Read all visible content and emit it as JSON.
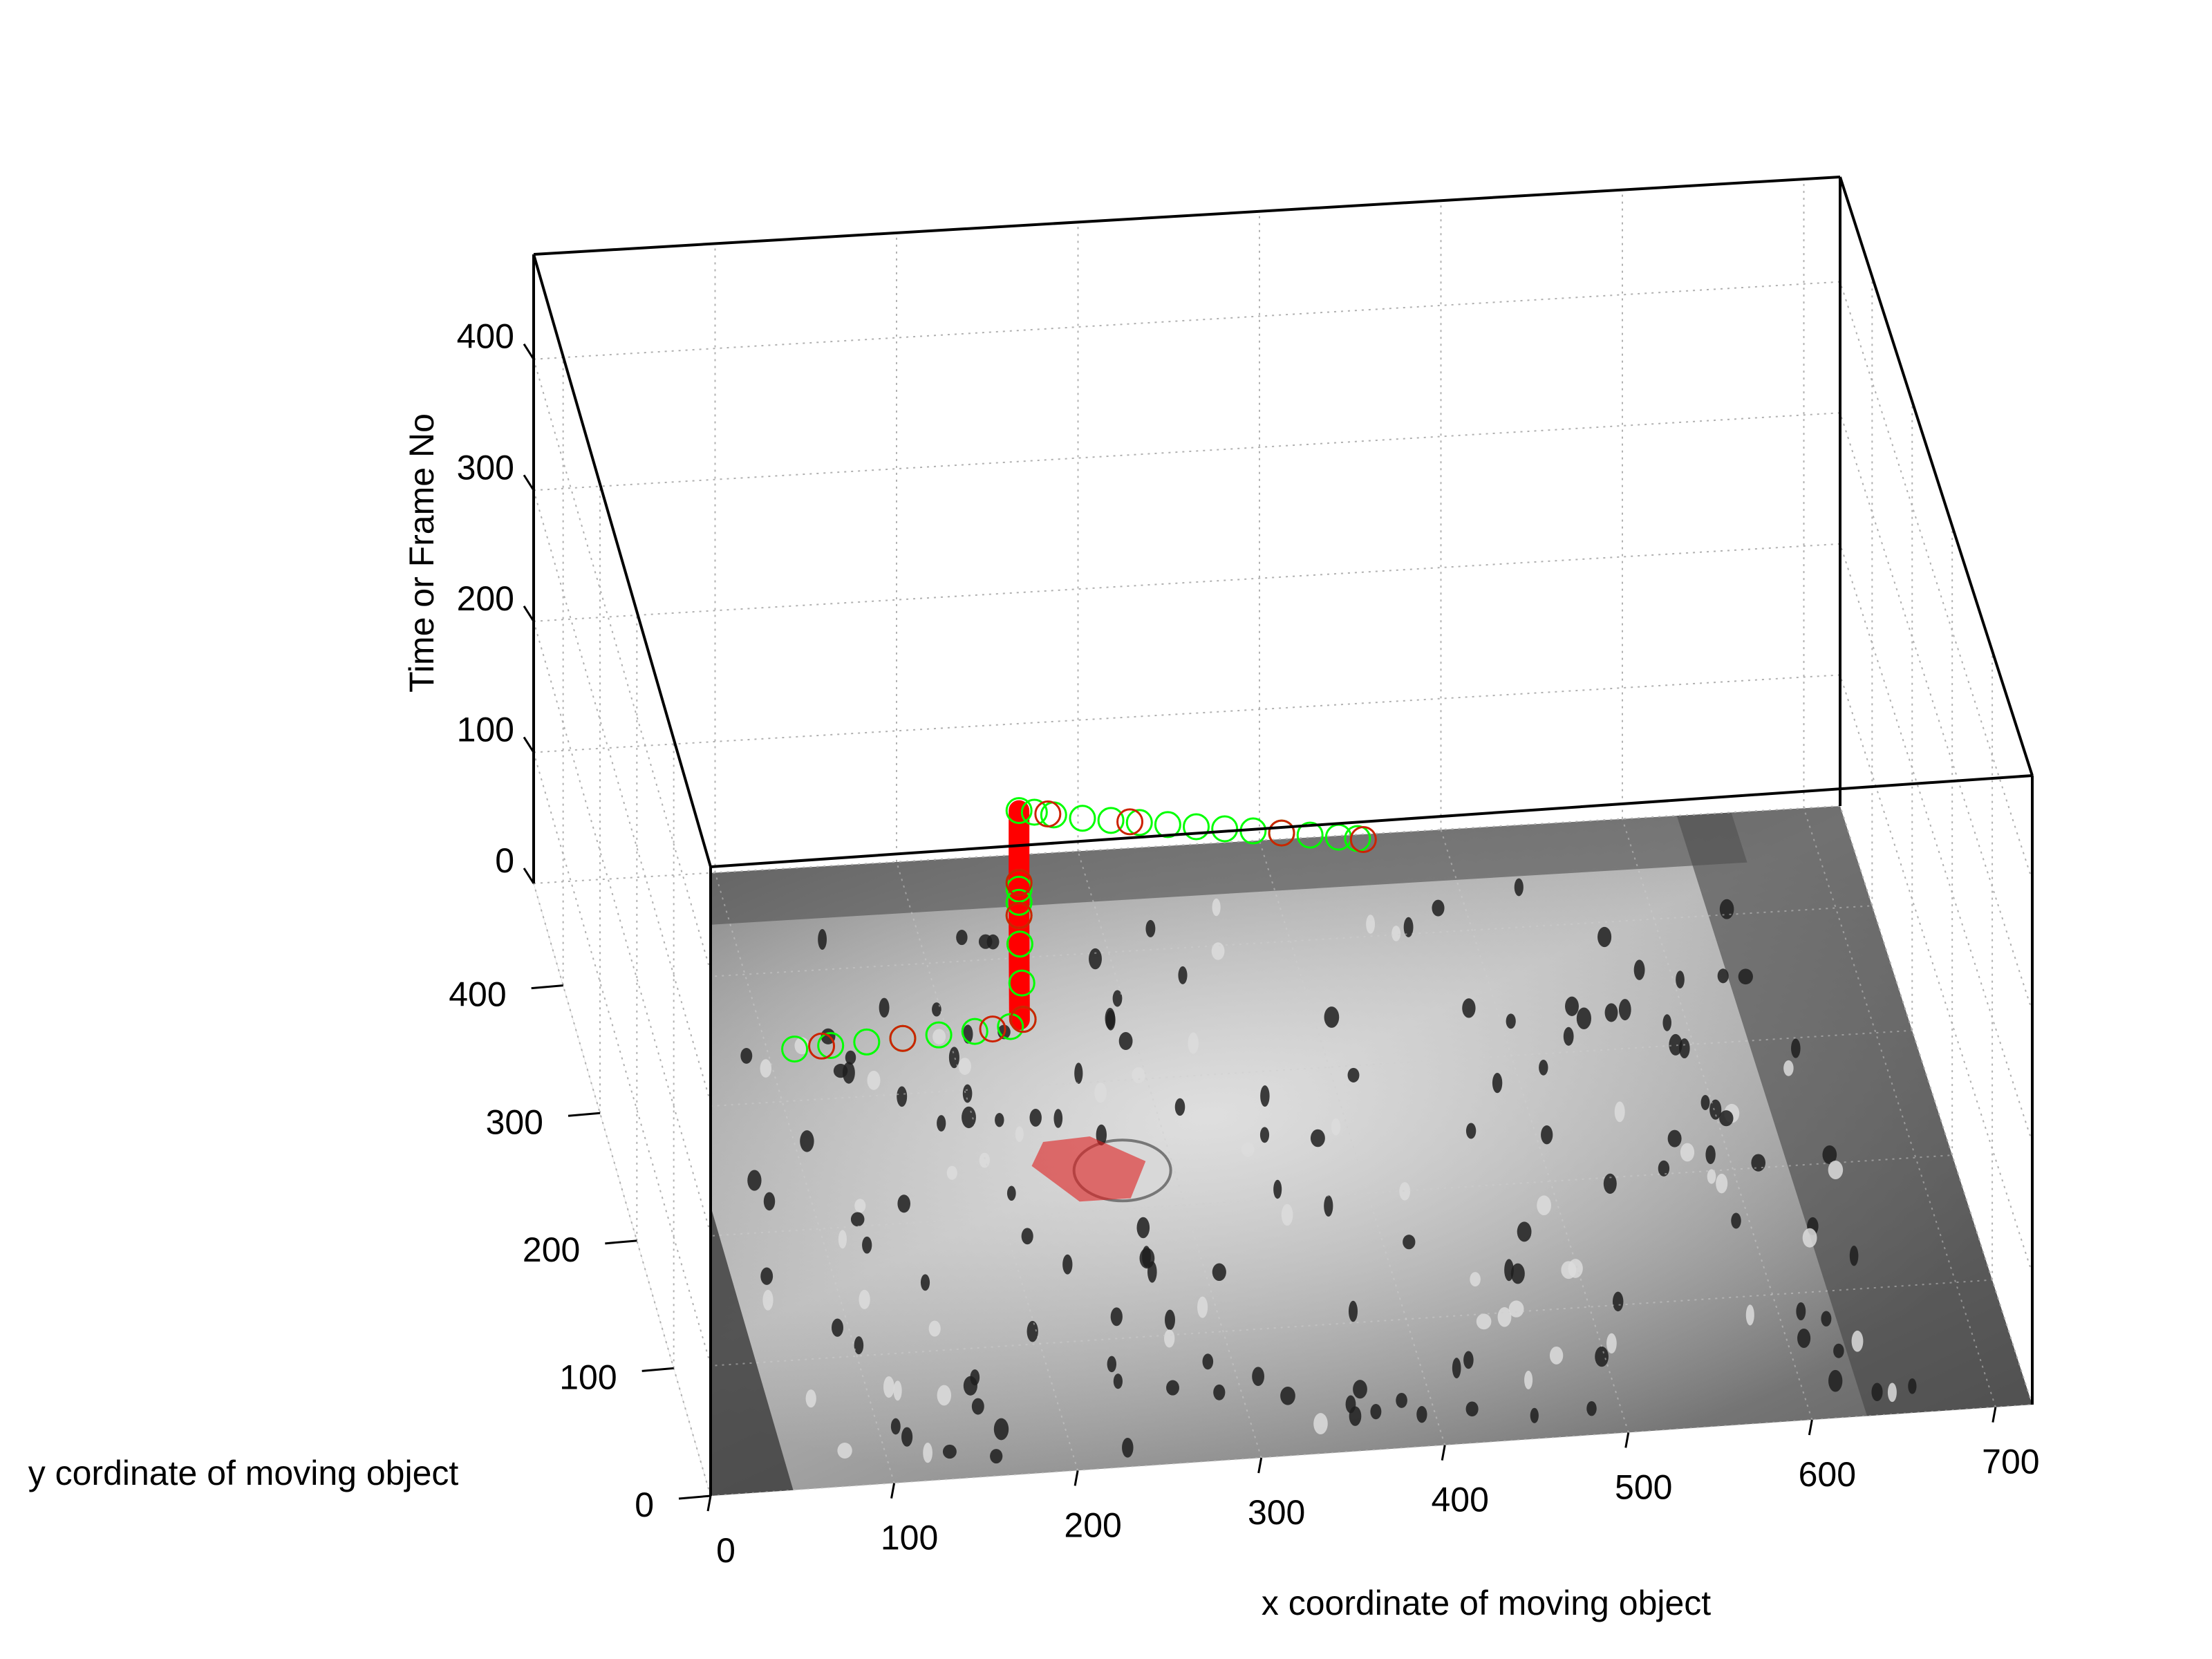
{
  "chart_data": {
    "type": "scatter",
    "projection": "3d",
    "background_image": "grayscale overhead photo of a crowded train station concourse placed on the z = 0 plane",
    "xlabel": "x coordinate of moving object",
    "ylabel": "y cordinate of moving object",
    "zlabel": "Time or Frame No",
    "xlim": [
      0,
      720
    ],
    "ylim": [
      0,
      480
    ],
    "zlim": [
      0,
      480
    ],
    "x_ticks": [
      0,
      100,
      200,
      300,
      400,
      500,
      600,
      700
    ],
    "y_ticks": [
      0,
      100,
      200,
      300,
      400
    ],
    "z_ticks": [
      0,
      100,
      200,
      300,
      400
    ],
    "x_tick_labels": [
      "0",
      "100",
      "200",
      "300",
      "400",
      "500",
      "600",
      "700"
    ],
    "y_tick_labels": [
      "0",
      "100",
      "200",
      "300",
      "400"
    ],
    "z_tick_labels": [
      "0",
      "100",
      "200",
      "300",
      "400"
    ],
    "grid": true,
    "colors": {
      "red_path": "#ff0000",
      "green_markers": "#00ff00",
      "red_markers": "#cc2200",
      "region": "#e02020"
    },
    "series": [
      {
        "marker": "circle",
        "color": "#00ff00",
        "points": [
          [
            115,
            340,
            0
          ],
          [
            135,
            341,
            0
          ],
          [
            155,
            342,
            0
          ],
          [
            175,
            343,
            0
          ],
          [
            195,
            344,
            0
          ],
          [
            215,
            345,
            0
          ],
          [
            235,
            347,
            0
          ],
          [
            243,
            352,
            0
          ],
          [
            245,
            365,
            15
          ],
          [
            246,
            375,
            35
          ],
          [
            247,
            382,
            50
          ],
          [
            247,
            382,
            60
          ],
          [
            247,
            382,
            70
          ],
          [
            247,
            382,
            75
          ],
          [
            247,
            382,
            130
          ],
          [
            255,
            380,
            130
          ],
          [
            265,
            377,
            130
          ],
          [
            280,
            373,
            130
          ],
          [
            295,
            370,
            130
          ],
          [
            310,
            367,
            130
          ],
          [
            325,
            364,
            130
          ],
          [
            340,
            361,
            130
          ],
          [
            355,
            358,
            130
          ],
          [
            370,
            355,
            130
          ],
          [
            385,
            352,
            130
          ],
          [
            400,
            349,
            130
          ],
          [
            415,
            346,
            130
          ],
          [
            425,
            344,
            130
          ]
        ]
      },
      {
        "marker": "circle",
        "color": "#cc2200",
        "points": [
          [
            130,
            341,
            0
          ],
          [
            175,
            343,
            0
          ],
          [
            225,
            346,
            0
          ],
          [
            243,
            352,
            0
          ],
          [
            247,
            382,
            50
          ],
          [
            247,
            382,
            75
          ],
          [
            262,
            378,
            130
          ],
          [
            305,
            368,
            130
          ],
          [
            385,
            352,
            130
          ],
          [
            428,
            343,
            130
          ]
        ]
      },
      {
        "marker": "line",
        "color": "#ff0000",
        "width": "thick",
        "points": [
          [
            241,
            352,
            0
          ],
          [
            243,
            362,
            10
          ],
          [
            245,
            372,
            25
          ],
          [
            247,
            382,
            50
          ],
          [
            247,
            382,
            75
          ],
          [
            247,
            382,
            130
          ]
        ]
      }
    ],
    "regions": [
      {
        "shape": "polygon",
        "color": "#e02020",
        "opacity": 0.6,
        "points": [
          [
            224,
            238
          ],
          [
            244,
            208
          ],
          [
            272,
            208
          ],
          [
            286,
            236
          ],
          [
            260,
            258
          ],
          [
            234,
            256
          ]
        ]
      }
    ]
  }
}
